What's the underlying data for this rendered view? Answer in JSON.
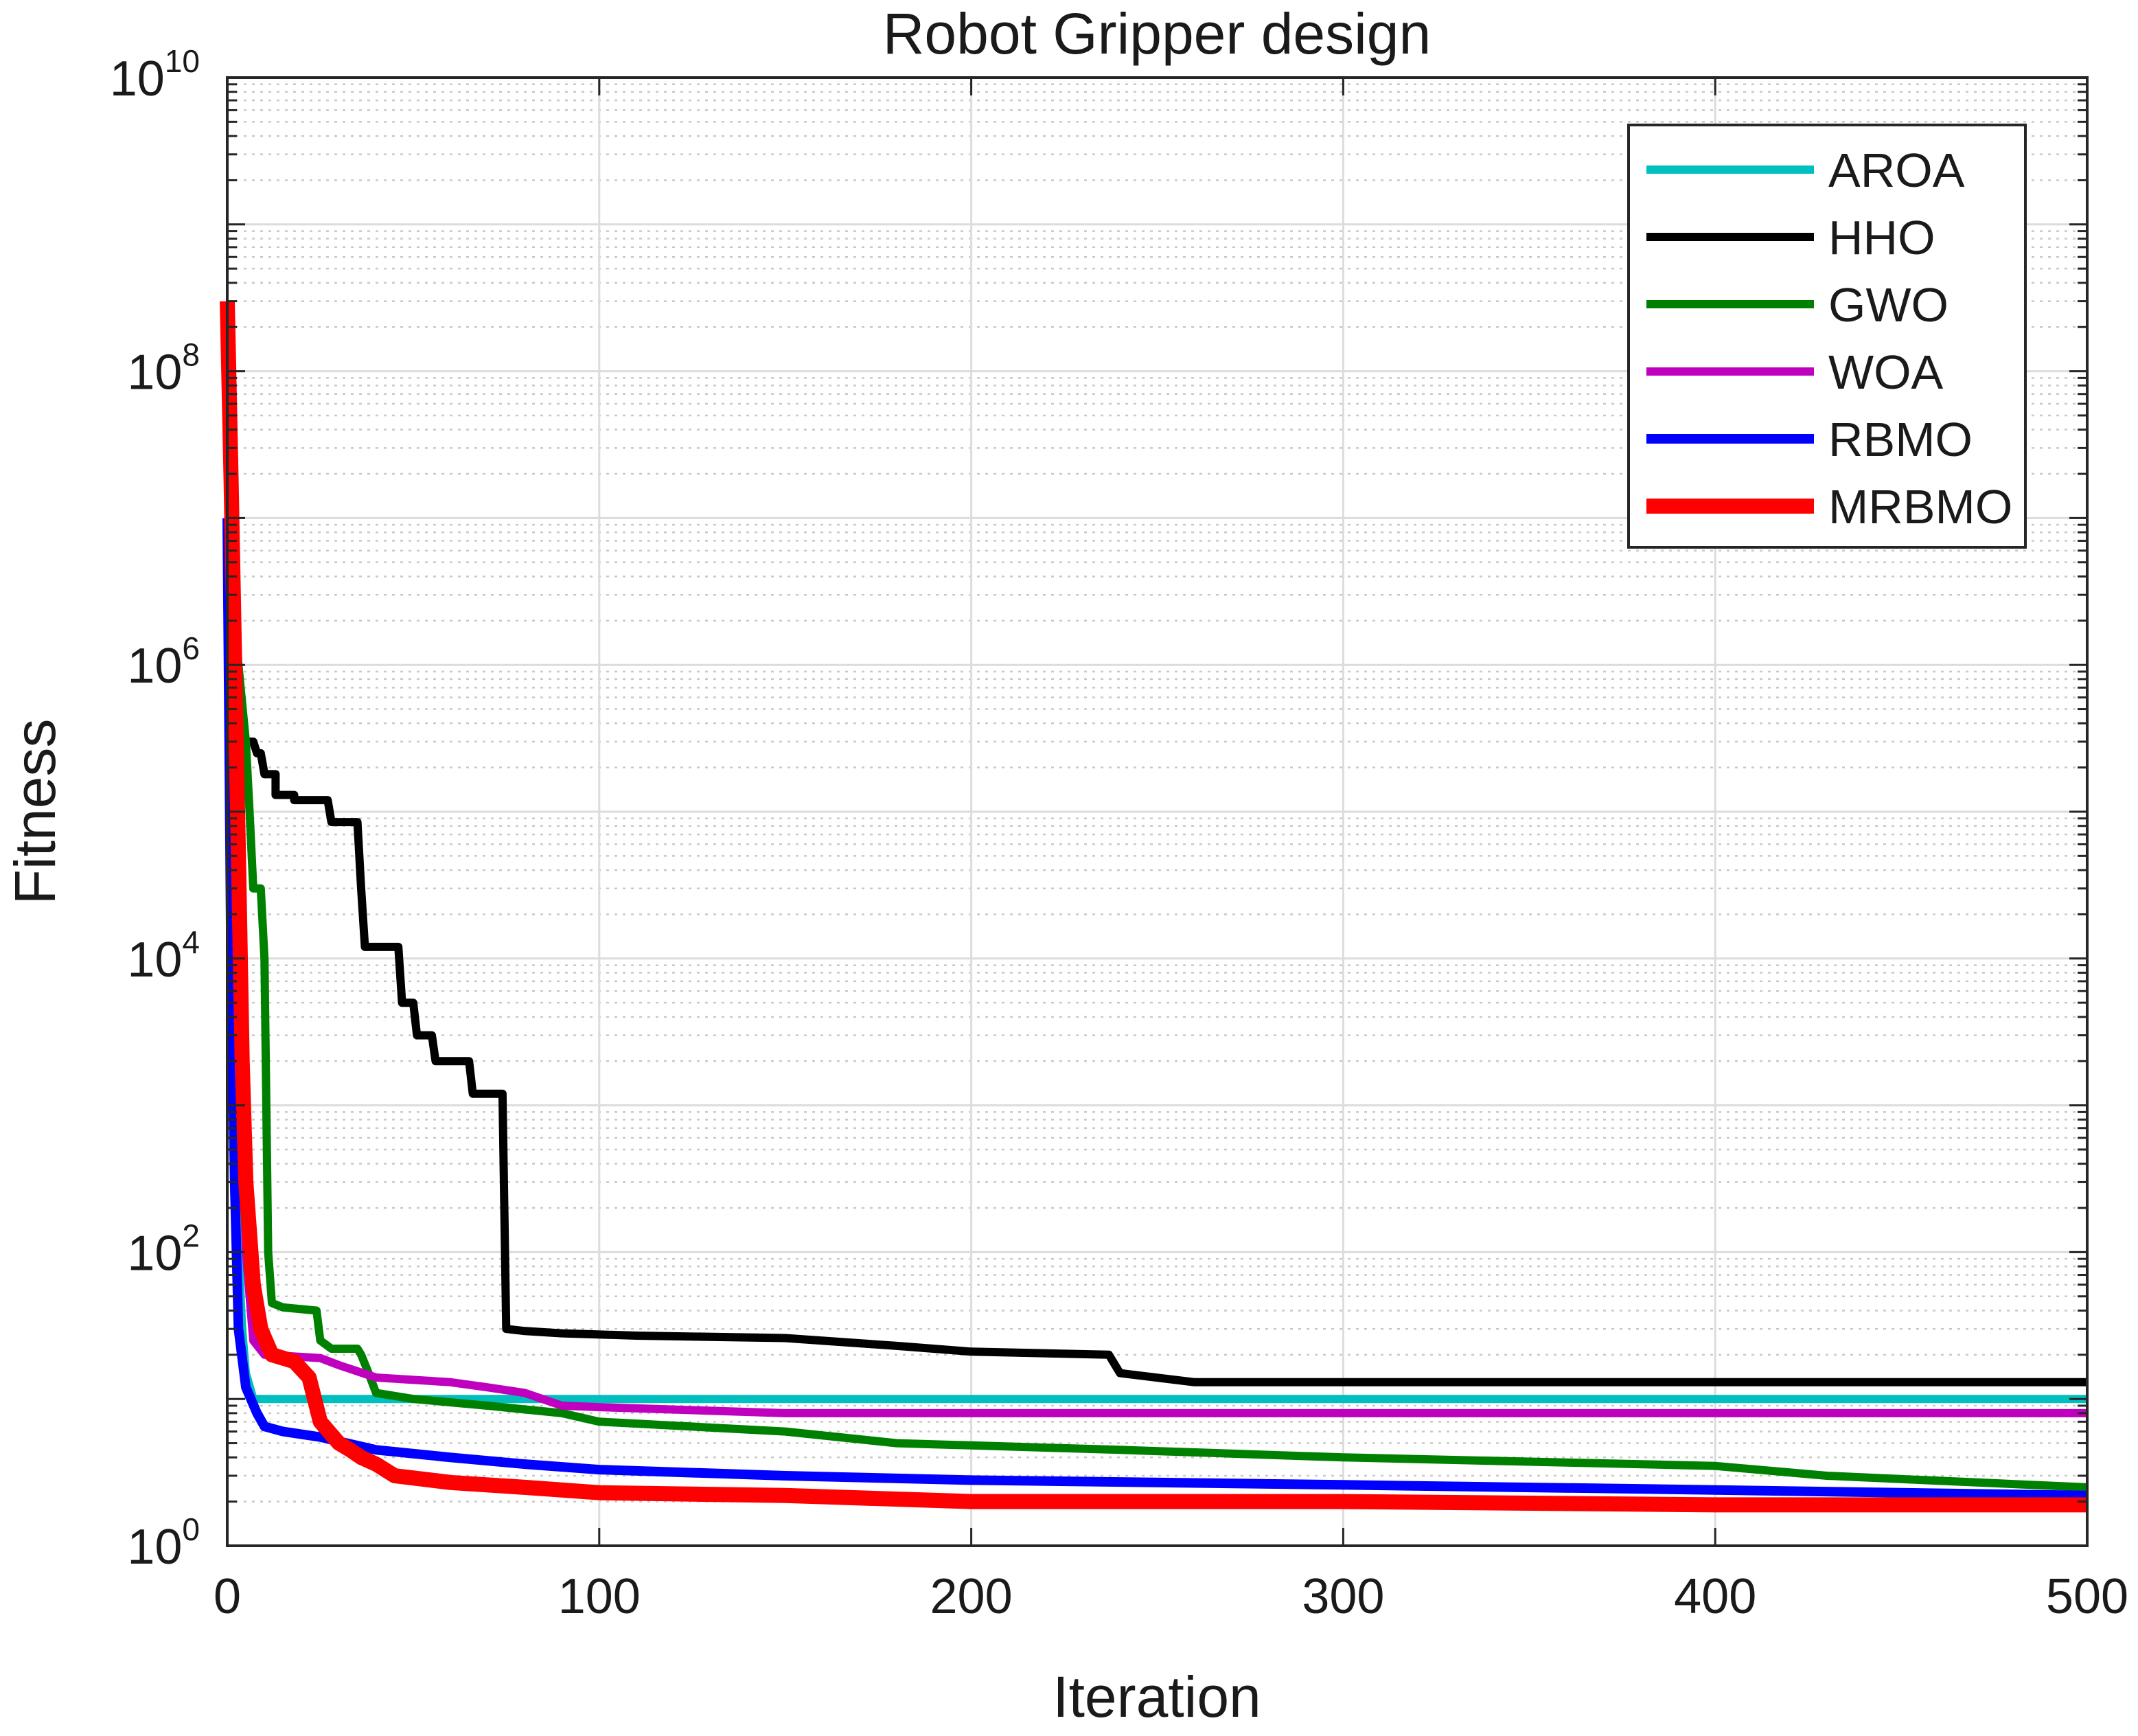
{
  "chart_data": {
    "type": "line",
    "title": "Robot Gripper design",
    "xlabel": "Iteration",
    "ylabel": "Fitness",
    "xlim": [
      0,
      500
    ],
    "ylim": [
      1,
      10000000000
    ],
    "yscale": "log",
    "grid": true,
    "legend_position": "top-right",
    "x_ticks": [
      "0",
      "100",
      "200",
      "300",
      "400",
      "500"
    ],
    "y_ticks": [
      {
        "base": "10",
        "exp": "0"
      },
      {
        "base": "10",
        "exp": "2"
      },
      {
        "base": "10",
        "exp": "4"
      },
      {
        "base": "10",
        "exp": "6"
      },
      {
        "base": "10",
        "exp": "8"
      },
      {
        "base": "10",
        "exp": "10"
      }
    ],
    "series": [
      {
        "name": "AROA",
        "color": "#00BFBF",
        "points": [
          [
            0,
            3000000
          ],
          [
            1,
            100000
          ],
          [
            2,
            2000
          ],
          [
            3,
            100
          ],
          [
            4,
            30
          ],
          [
            5,
            15
          ],
          [
            7,
            10
          ],
          [
            10,
            10
          ],
          [
            500,
            10
          ]
        ]
      },
      {
        "name": "HHO",
        "color": "#000000",
        "points": [
          [
            0,
            3000000
          ],
          [
            2,
            1000000
          ],
          [
            4,
            500000
          ],
          [
            5,
            300000
          ],
          [
            7,
            300000
          ],
          [
            8,
            250000
          ],
          [
            9,
            250000
          ],
          [
            10,
            180000
          ],
          [
            13,
            180000
          ],
          [
            13,
            130000
          ],
          [
            18,
            130000
          ],
          [
            18,
            120000
          ],
          [
            27,
            120000
          ],
          [
            28,
            85000
          ],
          [
            35,
            85000
          ],
          [
            36,
            30000
          ],
          [
            37,
            12000
          ],
          [
            46,
            12000
          ],
          [
            47,
            5000
          ],
          [
            50,
            5000
          ],
          [
            51,
            3000
          ],
          [
            55,
            3000
          ],
          [
            56,
            2000
          ],
          [
            65,
            2000
          ],
          [
            66,
            1200
          ],
          [
            74,
            1200
          ],
          [
            75,
            30
          ],
          [
            80,
            29
          ],
          [
            90,
            28
          ],
          [
            110,
            27
          ],
          [
            150,
            26
          ],
          [
            180,
            23
          ],
          [
            200,
            21
          ],
          [
            237,
            20
          ],
          [
            240,
            15
          ],
          [
            260,
            13
          ],
          [
            300,
            13
          ],
          [
            400,
            13
          ],
          [
            500,
            13
          ]
        ]
      },
      {
        "name": "GWO",
        "color": "#008000",
        "points": [
          [
            0,
            10000000
          ],
          [
            3,
            1000000
          ],
          [
            5,
            300000
          ],
          [
            6,
            100000
          ],
          [
            7,
            30000
          ],
          [
            9,
            30000
          ],
          [
            10,
            10000
          ],
          [
            11,
            100
          ],
          [
            12,
            45
          ],
          [
            15,
            42
          ],
          [
            24,
            40
          ],
          [
            25,
            25
          ],
          [
            28,
            22
          ],
          [
            35,
            22
          ],
          [
            36,
            20
          ],
          [
            38,
            15
          ],
          [
            40,
            11
          ],
          [
            50,
            10
          ],
          [
            70,
            9
          ],
          [
            90,
            8
          ],
          [
            100,
            7
          ],
          [
            150,
            6
          ],
          [
            180,
            5
          ],
          [
            240,
            4.5
          ],
          [
            300,
            4
          ],
          [
            400,
            3.5
          ],
          [
            430,
            3
          ],
          [
            500,
            2.5
          ]
        ]
      },
      {
        "name": "WOA",
        "color": "#BF00BF",
        "points": [
          [
            0,
            3000000
          ],
          [
            2,
            100000
          ],
          [
            4,
            1000
          ],
          [
            5,
            100
          ],
          [
            7,
            25
          ],
          [
            10,
            20
          ],
          [
            25,
            19
          ],
          [
            30,
            17
          ],
          [
            40,
            14
          ],
          [
            60,
            13
          ],
          [
            70,
            12
          ],
          [
            80,
            11
          ],
          [
            90,
            9
          ],
          [
            100,
            8.8
          ],
          [
            150,
            8
          ],
          [
            200,
            8
          ],
          [
            300,
            8
          ],
          [
            500,
            8
          ]
        ]
      },
      {
        "name": "RBMO",
        "color": "#0000FF",
        "points": [
          [
            0,
            10000000
          ],
          [
            1,
            10000
          ],
          [
            2,
            300
          ],
          [
            3,
            30
          ],
          [
            5,
            12
          ],
          [
            8,
            8
          ],
          [
            10,
            6.5
          ],
          [
            15,
            6
          ],
          [
            25,
            5.5
          ],
          [
            40,
            4.5
          ],
          [
            60,
            4
          ],
          [
            80,
            3.6
          ],
          [
            100,
            3.3
          ],
          [
            150,
            3
          ],
          [
            200,
            2.8
          ],
          [
            300,
            2.6
          ],
          [
            400,
            2.4
          ],
          [
            500,
            2.2
          ]
        ]
      },
      {
        "name": "MRBMO",
        "color": "#FF0000",
        "points": [
          [
            0,
            300000000
          ],
          [
            1,
            20000000
          ],
          [
            2,
            1000000
          ],
          [
            3,
            50000
          ],
          [
            4,
            2000
          ],
          [
            5,
            300
          ],
          [
            7,
            60
          ],
          [
            9,
            30
          ],
          [
            12,
            20
          ],
          [
            18,
            18
          ],
          [
            22,
            14
          ],
          [
            25,
            7
          ],
          [
            30,
            5
          ],
          [
            33,
            4.5
          ],
          [
            36,
            4
          ],
          [
            40,
            3.6
          ],
          [
            45,
            3
          ],
          [
            60,
            2.7
          ],
          [
            80,
            2.5
          ],
          [
            100,
            2.3
          ],
          [
            150,
            2.2
          ],
          [
            200,
            2
          ],
          [
            300,
            2
          ],
          [
            400,
            1.9
          ],
          [
            500,
            1.9
          ]
        ]
      }
    ]
  }
}
